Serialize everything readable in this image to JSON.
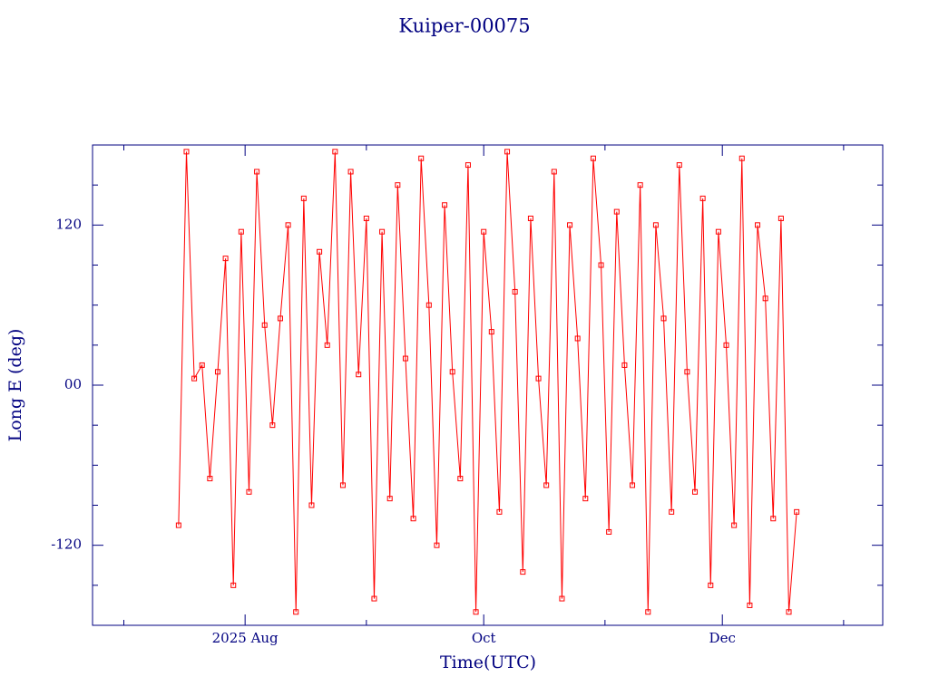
{
  "chart_data": {
    "type": "line",
    "title": "Kuiper-00075",
    "xlabel": "Time(UTC)",
    "ylabel": "Long E (deg)",
    "xlim": [
      174,
      376
    ],
    "xticks": [
      {
        "value": 213,
        "label": "2025 Aug"
      },
      {
        "value": 274,
        "label": "Oct"
      },
      {
        "value": 335,
        "label": "Dec"
      }
    ],
    "xminorticks": [
      182,
      244,
      305,
      366
    ],
    "ylim": [
      -180,
      180
    ],
    "yticks": [
      {
        "value": -120,
        "label": "-120"
      },
      {
        "value": 0,
        "label": "00"
      },
      {
        "value": 120,
        "label": "120"
      }
    ],
    "yminorticks": [
      -150,
      -90,
      -60,
      -30,
      30,
      60,
      90,
      150
    ],
    "x": [
      196,
      198,
      200,
      202,
      204,
      206,
      208,
      210,
      212,
      214,
      216,
      218,
      220,
      222,
      224,
      226,
      228,
      230,
      232,
      234,
      236,
      238,
      240,
      242,
      244,
      246,
      248,
      250,
      252,
      254,
      256,
      258,
      260,
      262,
      264,
      266,
      268,
      270,
      272,
      274,
      276,
      278,
      280,
      282,
      284,
      286,
      288,
      290,
      292,
      294,
      296,
      298,
      300,
      302,
      304,
      306,
      308,
      310,
      312,
      314,
      316,
      318,
      320,
      322,
      324,
      326,
      328,
      330,
      332,
      334,
      336,
      338,
      340,
      342,
      344,
      346,
      348,
      350,
      352,
      354
    ],
    "series": [
      {
        "color": "#ff0000",
        "values": [
          -105,
          175,
          5,
          15,
          -70,
          10,
          95,
          -150,
          115,
          -80,
          160,
          45,
          -30,
          50,
          120,
          -170,
          140,
          -90,
          100,
          30,
          175,
          -75,
          160,
          8,
          125,
          -160,
          115,
          -85,
          150,
          20,
          -100,
          170,
          60,
          -120,
          135,
          10,
          -70,
          165,
          -170,
          115,
          40,
          -95,
          175,
          70,
          -140,
          125,
          5,
          -75,
          160,
          -160,
          120,
          35,
          -85,
          170,
          90,
          -110,
          130,
          15,
          -75,
          150,
          -170,
          120,
          50,
          -95,
          165,
          10,
          -80,
          140,
          -150,
          115,
          30,
          -105,
          170,
          -165,
          120,
          65,
          -100,
          125,
          -170,
          -95
        ]
      }
    ]
  }
}
